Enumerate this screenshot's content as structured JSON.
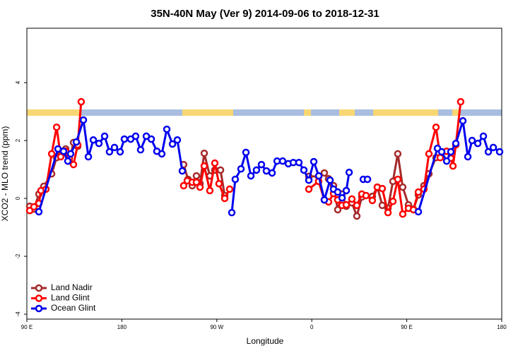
{
  "chart_data": {
    "type": "line",
    "title": "35N-40N May (Ver 9)   2014-09-06 to 2018-12-31",
    "x_label": "Longitude",
    "y_label": "XCO2 - MLO trend (ppm)",
    "xlim": [
      90,
      540
    ],
    "xticks": [
      {
        "value": 90,
        "label": "90 E"
      },
      180,
      {
        "value": 270,
        "label": "90 W"
      },
      {
        "value": 360,
        "label": "0"
      },
      {
        "value": 450,
        "label": "90 E"
      },
      {
        "value": 540,
        "label": "180"
      }
    ],
    "ylim": [
      -4.17,
      5.88
    ],
    "yticks": [
      -4,
      -2,
      0,
      2,
      4
    ],
    "legend": "bottom-left",
    "series": [
      {
        "name": "Land Nadir",
        "color": "#a52a2a",
        "x": [
          92.7,
          96.7,
          101.4,
          106.1,
          113.5,
          118.2,
          122.1,
          126.8,
          130.2,
          134.2,
          138.2,
          null,
          238.6,
          242.7,
          246.7,
          250.7,
          254.1,
          258.1,
          263.4,
          268.1,
          273.5,
          277.5,
          null,
          357.2,
          366.5,
          371.9,
          375.9,
          380.6,
          384.6,
          388.6,
          392.7,
          398.0,
          402.7,
          407.4,
          417.4,
          422.1,
          426.8,
          432.2,
          436.9,
          441.5,
          446.2,
          451.6,
          456.3,
          461.0,
          466.3,
          471.0,
          477.7
        ],
        "values": [
          -0.27,
          -0.37,
          0.15,
          0.42,
          0.85,
          1.41,
          1.49,
          1.71,
          1.29,
          1.93,
          1.8,
          null,
          1.17,
          0.66,
          0.44,
          0.78,
          0.51,
          1.56,
          0.78,
          0.98,
          0.98,
          0.1,
          null,
          0.76,
          0.76,
          0.88,
          0.68,
          0.44,
          -0.39,
          0.15,
          -0.27,
          -0.15,
          -0.61,
          0.05,
          0.07,
          0.39,
          -0.24,
          -0.34,
          0.59,
          1.54,
          0.39,
          -0.22,
          -0.37,
          0.12,
          0.44,
          0.85,
          1.41
        ]
      },
      {
        "name": "Land Glint",
        "color": "#ff0000",
        "x": [
          92.7,
          96.7,
          101.4,
          103.4,
          108.1,
          113.5,
          118.2,
          122.1,
          126.8,
          130.2,
          134.2,
          138.2,
          141.5,
          null,
          238.6,
          242.0,
          246.7,
          250.7,
          254.1,
          258.1,
          263.4,
          268.1,
          272.1,
          277.5,
          282.2,
          null,
          357.2,
          366.5,
          371.9,
          375.9,
          380.6,
          384.6,
          388.6,
          392.7,
          398.0,
          402.7,
          407.4,
          411.4,
          417.4,
          422.1,
          426.8,
          432.2,
          436.9,
          441.5,
          446.2,
          451.6,
          456.3,
          461.0,
          466.3,
          471.0,
          477.7,
          481.7,
          487.8,
          491.8,
          493.8,
          496.5,
          501.1
        ],
        "values": [
          -0.42,
          -0.29,
          -0.17,
          0.27,
          0.32,
          1.54,
          2.46,
          1.44,
          1.63,
          1.39,
          1.17,
          1.85,
          3.34,
          null,
          0.44,
          0.61,
          0.56,
          0.56,
          0.39,
          1.12,
          0.27,
          1.22,
          0.51,
          0.0,
          0.32,
          null,
          0.32,
          0.59,
          -0.05,
          -0.12,
          0.17,
          -0.05,
          -0.24,
          -0.22,
          -0.02,
          -0.24,
          0.15,
          0.1,
          -0.07,
          0.39,
          0.34,
          -0.49,
          -0.1,
          0.66,
          -0.54,
          -0.34,
          -0.39,
          0.22,
          0.32,
          1.54,
          2.46,
          1.41,
          1.63,
          1.39,
          1.12,
          1.85,
          3.34
        ]
      },
      {
        "name": "Ocean Glint",
        "color": "#0000ee",
        "x": [
          101.4,
          119.5,
          124.8,
          128.8,
          131.5,
          136.9,
          143.6,
          148.3,
          153.0,
          158.3,
          163.7,
          168.3,
          173.0,
          178.4,
          182.4,
          188.4,
          193.1,
          197.8,
          203.2,
          207.9,
          213.2,
          217.9,
          222.6,
          228.0,
          232.6,
          237.3,
          null,
          284.2,
          287.5,
          292.9,
          297.6,
          302.3,
          307.6,
          312.3,
          317.0,
          322.4,
          327.1,
          332.4,
          337.8,
          342.5,
          347.8,
          352.5,
          357.2,
          361.9,
          366.6,
          371.9,
          377.3,
          380.6,
          384.6,
          388.7,
          392.7,
          395.4,
          null,
          408.8,
          412.8,
          null,
          461.0,
          479.1,
          483.1,
          487.8,
          491.8,
          496.5,
          503.2,
          507.9,
          511.9,
          517.3,
          522.6,
          527.3,
          532.0,
          538.0
        ],
        "values": [
          -0.46,
          1.71,
          1.63,
          1.29,
          1.54,
          1.95,
          2.71,
          1.44,
          2.02,
          1.9,
          2.15,
          1.61,
          1.76,
          1.61,
          2.05,
          2.05,
          2.15,
          1.68,
          2.15,
          2.05,
          1.63,
          1.54,
          2.39,
          1.88,
          2.02,
          0.95,
          null,
          -0.49,
          0.66,
          1.02,
          1.59,
          0.78,
          0.98,
          1.17,
          0.95,
          0.88,
          1.29,
          1.29,
          1.2,
          1.24,
          1.24,
          0.98,
          0.63,
          1.27,
          0.78,
          -0.05,
          0.63,
          0.32,
          0.22,
          0.02,
          0.27,
          0.9,
          null,
          0.66,
          0.66,
          null,
          -0.46,
          1.73,
          1.61,
          1.29,
          1.61,
          1.9,
          2.68,
          1.44,
          2.0,
          1.9,
          2.15,
          1.61,
          1.76,
          1.61
        ]
      }
    ]
  }
}
